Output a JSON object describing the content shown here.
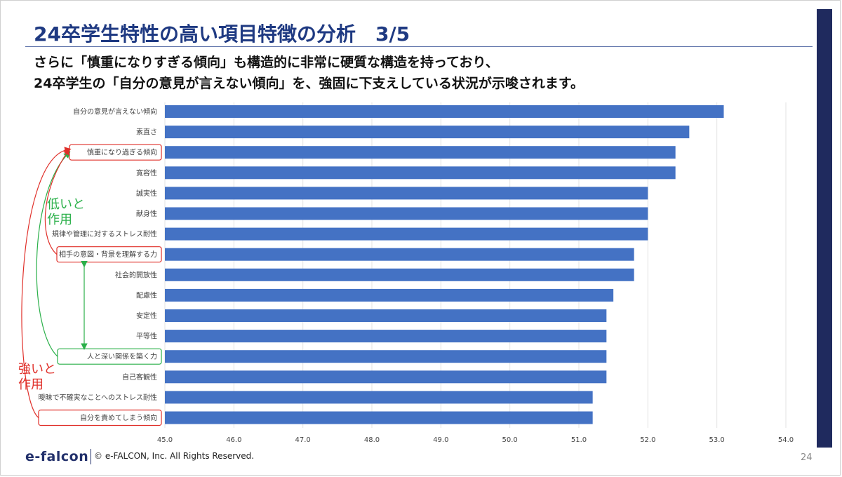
{
  "title": "24卒学生特性の高い項目特徴の分析　3/5",
  "subtitle_line1": "さらに「慎重になりすぎる傾向」も構造的に非常に硬質な構造を持っており、",
  "subtitle_line2": "24卒学生の「自分の意見が言えない傾向」を、強固に下支えしている状況が示唆されます。",
  "notes": {
    "green": [
      "低いと",
      "作用"
    ],
    "red": [
      "強いと",
      "作用"
    ]
  },
  "colors": {
    "bar": "#4472c4",
    "title": "#1f3a82",
    "accent_bar": "#1f2a5e",
    "green": "#2bb04a",
    "red": "#e0302a"
  },
  "chart_data": {
    "type": "bar",
    "orientation": "horizontal",
    "categories": [
      "自分の意見が言えない傾向",
      "素直さ",
      "慎重になり過ぎる傾向",
      "寛容性",
      "誠実性",
      "献身性",
      "規律や管理に対するストレス耐性",
      "相手の意図・背景を理解する力",
      "社会的開放性",
      "配慮性",
      "安定性",
      "平等性",
      "人と深い関係を築く力",
      "自己客観性",
      "曖昧で不確実なことへのストレス耐性",
      "自分を責めてしまう傾向"
    ],
    "values": [
      53.1,
      52.6,
      52.4,
      52.4,
      52.0,
      52.0,
      52.0,
      51.8,
      51.8,
      51.5,
      51.4,
      51.4,
      51.4,
      51.4,
      51.2,
      51.2
    ],
    "xlim": [
      45.0,
      54.0
    ],
    "xticks": [
      "45.0",
      "46.0",
      "47.0",
      "48.0",
      "49.0",
      "50.0",
      "51.0",
      "52.0",
      "53.0",
      "54.0"
    ],
    "grid": true,
    "highlight_red": [
      2,
      7,
      15
    ],
    "highlight_green": [
      12
    ],
    "title": "",
    "xlabel": "",
    "ylabel": ""
  },
  "footer": {
    "logo": "e-falcon",
    "copyright": "© e-FALCON, Inc. All Rights Reserved.",
    "page": "24"
  }
}
